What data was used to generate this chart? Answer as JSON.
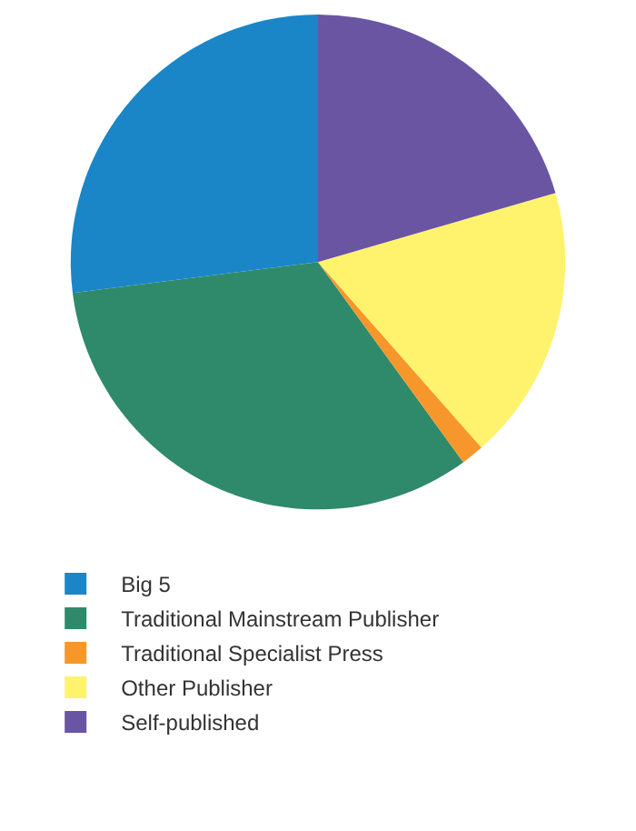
{
  "chart_data": {
    "type": "pie",
    "categories": [
      "Big 5",
      "Traditional Mainstream Publisher",
      "Traditional Specialist Press",
      "Other Publisher",
      "Self-published"
    ],
    "values": [
      27,
      33,
      1.5,
      18,
      20.5
    ],
    "colors": [
      "#1a86c8",
      "#2e8a6b",
      "#f7962a",
      "#fff36e",
      "#6a55a3"
    ],
    "legend": "bottom"
  }
}
